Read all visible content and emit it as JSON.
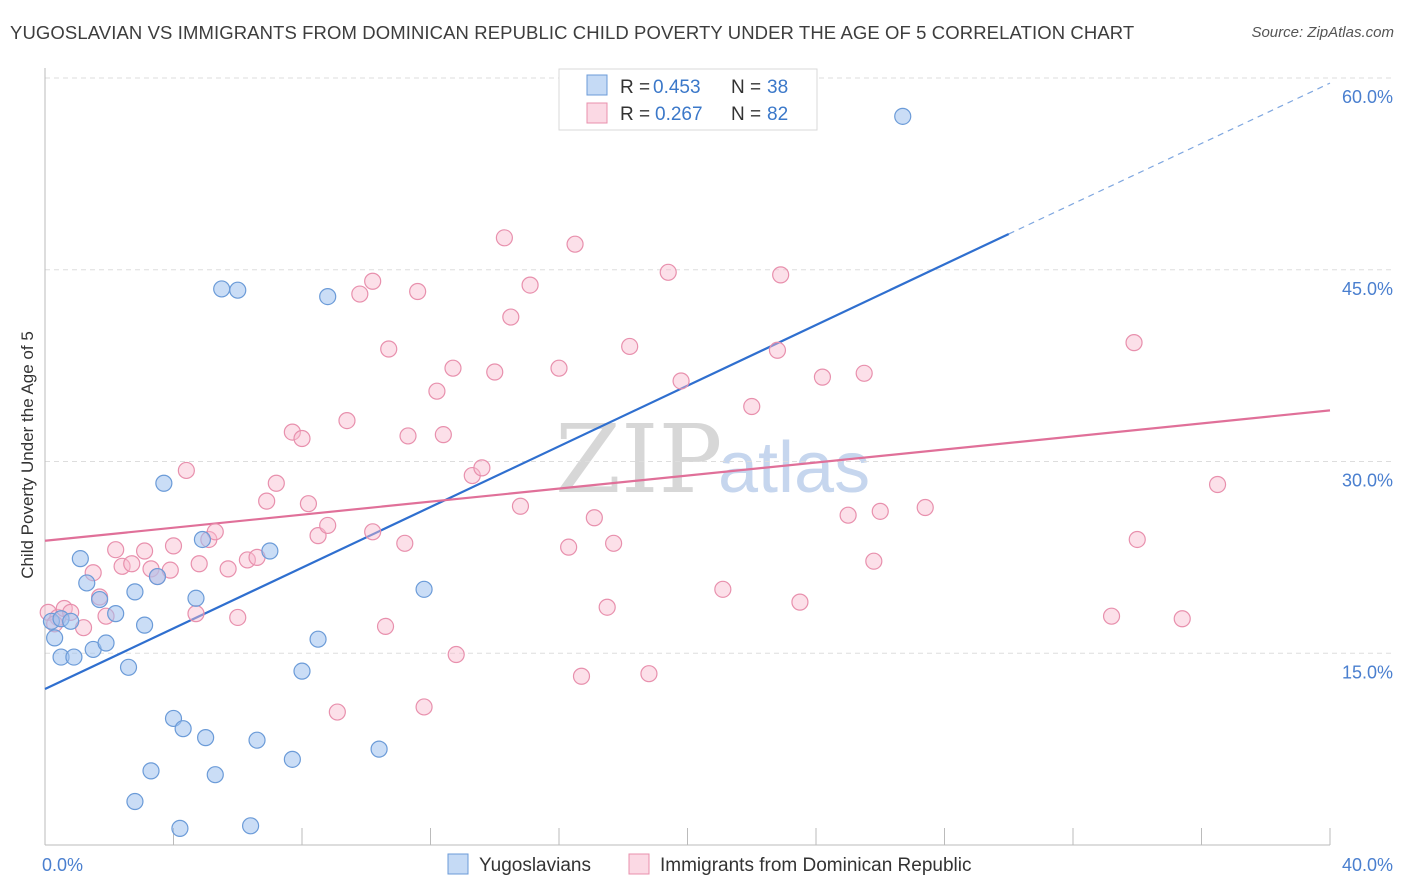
{
  "title": "YUGOSLAVIAN VS IMMIGRANTS FROM DOMINICAN REPUBLIC CHILD POVERTY UNDER THE AGE OF 5 CORRELATION CHART",
  "source": "Source: ZipAtlas.com",
  "watermark": {
    "zip": "ZIP",
    "atlas": "atlas"
  },
  "colors": {
    "yugoslavians": "#6b9bd8",
    "dominican": "#e890ad",
    "blue_line": "#2f6fcf",
    "pink_line": "#e07099"
  },
  "chart_data": {
    "type": "scatter",
    "ylabel": "Child Poverty Under the Age of 5",
    "xlim": [
      0,
      40
    ],
    "ylim": [
      0,
      60
    ],
    "x_tick_labels": [
      {
        "value": 0,
        "label": "0.0%"
      },
      {
        "value": 40,
        "label": "40.0%"
      }
    ],
    "y_tick_labels": [
      {
        "value": 15,
        "label": "15.0%"
      },
      {
        "value": 30,
        "label": "30.0%"
      },
      {
        "value": 45,
        "label": "45.0%"
      },
      {
        "value": 60,
        "label": "60.0%"
      }
    ],
    "legend": {
      "rows": [
        {
          "r_label": "R = ",
          "r_value": "0.453",
          "n_label": "N = ",
          "n_value": "38"
        },
        {
          "r_label": "R = ",
          "r_value": "0.267",
          "n_label": "N = ",
          "n_value": "82"
        }
      ]
    },
    "series": [
      {
        "name": "Yugoslavians",
        "trend": {
          "x0": 0,
          "y0": 12.2,
          "x1": 30,
          "y1": 47.8,
          "dash_to_x": 40,
          "dash_to_y": 59.6
        },
        "points": [
          [
            0.2,
            17.5
          ],
          [
            0.3,
            16.2
          ],
          [
            0.5,
            17.7
          ],
          [
            0.5,
            14.7
          ],
          [
            0.8,
            17.5
          ],
          [
            0.9,
            14.7
          ],
          [
            1.1,
            22.4
          ],
          [
            1.3,
            20.5
          ],
          [
            1.5,
            15.3
          ],
          [
            1.7,
            19.2
          ],
          [
            1.9,
            15.8
          ],
          [
            2.2,
            18.1
          ],
          [
            2.6,
            13.9
          ],
          [
            2.8,
            19.8
          ],
          [
            2.8,
            3.4
          ],
          [
            3.1,
            17.2
          ],
          [
            3.3,
            5.8
          ],
          [
            3.5,
            21.0
          ],
          [
            3.7,
            28.3
          ],
          [
            4.0,
            9.9
          ],
          [
            4.2,
            1.3
          ],
          [
            4.3,
            9.1
          ],
          [
            4.7,
            19.3
          ],
          [
            4.9,
            23.9
          ],
          [
            5.0,
            8.4
          ],
          [
            5.3,
            5.5
          ],
          [
            5.5,
            43.5
          ],
          [
            6.0,
            43.4
          ],
          [
            6.4,
            1.5
          ],
          [
            6.6,
            8.2
          ],
          [
            7.0,
            23.0
          ],
          [
            7.7,
            6.7
          ],
          [
            8.0,
            13.6
          ],
          [
            8.5,
            16.1
          ],
          [
            8.8,
            42.9
          ],
          [
            10.4,
            7.5
          ],
          [
            11.8,
            20.0
          ],
          [
            26.7,
            57.0
          ]
        ]
      },
      {
        "name": "Immigrants from Dominican Republic",
        "trend": {
          "x0": 0,
          "y0": 23.8,
          "x1": 40,
          "y1": 34.0
        },
        "points": [
          [
            0.1,
            18.2
          ],
          [
            0.4,
            17.8
          ],
          [
            0.6,
            18.5
          ],
          [
            0.8,
            18.2
          ],
          [
            1.2,
            17.0
          ],
          [
            1.5,
            21.3
          ],
          [
            1.7,
            19.4
          ],
          [
            1.9,
            17.9
          ],
          [
            2.2,
            23.1
          ],
          [
            2.4,
            21.8
          ],
          [
            2.7,
            22.0
          ],
          [
            3.1,
            23.0
          ],
          [
            3.3,
            21.6
          ],
          [
            3.5,
            21.0
          ],
          [
            3.9,
            21.5
          ],
          [
            4.0,
            23.4
          ],
          [
            4.4,
            29.3
          ],
          [
            4.7,
            18.1
          ],
          [
            4.8,
            22.0
          ],
          [
            5.1,
            23.9
          ],
          [
            5.3,
            24.5
          ],
          [
            5.7,
            21.6
          ],
          [
            6.0,
            17.8
          ],
          [
            6.3,
            22.3
          ],
          [
            6.6,
            22.5
          ],
          [
            6.9,
            26.9
          ],
          [
            7.2,
            28.3
          ],
          [
            7.7,
            32.3
          ],
          [
            8.0,
            31.8
          ],
          [
            8.2,
            26.7
          ],
          [
            8.5,
            24.2
          ],
          [
            8.8,
            25.0
          ],
          [
            9.1,
            10.4
          ],
          [
            9.4,
            33.2
          ],
          [
            9.8,
            43.1
          ],
          [
            10.2,
            44.1
          ],
          [
            10.2,
            24.5
          ],
          [
            10.6,
            17.1
          ],
          [
            10.7,
            38.8
          ],
          [
            11.2,
            23.6
          ],
          [
            11.3,
            32.0
          ],
          [
            11.6,
            43.3
          ],
          [
            11.8,
            10.8
          ],
          [
            12.2,
            35.5
          ],
          [
            12.4,
            32.1
          ],
          [
            12.7,
            37.3
          ],
          [
            12.8,
            14.9
          ],
          [
            13.3,
            28.9
          ],
          [
            13.6,
            29.5
          ],
          [
            14.0,
            37.0
          ],
          [
            14.3,
            47.5
          ],
          [
            14.5,
            41.3
          ],
          [
            14.8,
            26.5
          ],
          [
            15.1,
            43.8
          ],
          [
            16.0,
            37.3
          ],
          [
            16.3,
            23.3
          ],
          [
            16.5,
            47.0
          ],
          [
            16.7,
            13.2
          ],
          [
            17.1,
            25.6
          ],
          [
            17.5,
            18.6
          ],
          [
            17.7,
            23.6
          ],
          [
            18.2,
            39.0
          ],
          [
            18.8,
            13.4
          ],
          [
            19.4,
            44.8
          ],
          [
            19.8,
            36.3
          ],
          [
            21.1,
            20.0
          ],
          [
            22.0,
            34.3
          ],
          [
            22.8,
            38.7
          ],
          [
            22.9,
            44.6
          ],
          [
            23.5,
            19.0
          ],
          [
            24.2,
            36.6
          ],
          [
            25.0,
            25.8
          ],
          [
            25.5,
            36.9
          ],
          [
            25.8,
            22.2
          ],
          [
            26.0,
            26.1
          ],
          [
            27.4,
            26.4
          ],
          [
            33.2,
            17.9
          ],
          [
            33.9,
            39.3
          ],
          [
            34.0,
            23.9
          ],
          [
            35.4,
            17.7
          ],
          [
            36.5,
            28.2
          ],
          [
            0.3,
            17.3
          ]
        ]
      }
    ]
  },
  "bottom_legend": {
    "items": [
      {
        "label": "Yugoslavians"
      },
      {
        "label": "Immigrants from Dominican Republic"
      }
    ]
  }
}
